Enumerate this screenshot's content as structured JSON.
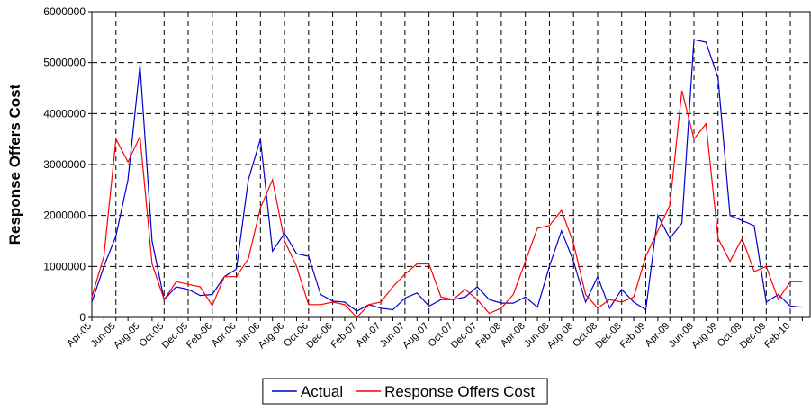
{
  "chart_data": {
    "type": "line",
    "y_label": "Response Offers Cost",
    "categories": [
      "Apr-05",
      null,
      "Jun-05",
      null,
      "Aug-05",
      null,
      "Oct-05",
      null,
      "Dec-05",
      null,
      "Feb-06",
      null,
      "Apr-06",
      null,
      "Jun-06",
      null,
      "Aug-06",
      null,
      "Oct-06",
      null,
      "Dec-06",
      null,
      "Feb-07",
      null,
      "Apr-07",
      null,
      "Jun-07",
      null,
      "Aug-07",
      null,
      "Oct-07",
      null,
      "Dec-07",
      null,
      "Feb-08",
      null,
      "Apr-08",
      null,
      "Jun-08",
      null,
      "Aug-08",
      null,
      "Oct-08",
      null,
      "Dec-08",
      null,
      "Feb-09",
      null,
      "Apr-09",
      null,
      "Jun-09",
      null,
      "Aug-09",
      null,
      "Oct-09",
      null,
      "Dec-09",
      null,
      "Feb-10",
      null
    ],
    "series": [
      {
        "name": "Actual",
        "color": "#0000cc",
        "values": [
          300000,
          1000000,
          1600000,
          2700000,
          4950000,
          1500000,
          350000,
          600000,
          550000,
          430000,
          450000,
          800000,
          950000,
          2700000,
          3500000,
          1300000,
          1650000,
          1250000,
          1200000,
          450000,
          320000,
          300000,
          120000,
          250000,
          180000,
          150000,
          380000,
          480000,
          220000,
          350000,
          350000,
          400000,
          600000,
          350000,
          280000,
          280000,
          400000,
          200000,
          1000000,
          1700000,
          1100000,
          300000,
          800000,
          180000,
          550000,
          300000,
          150000,
          2000000,
          1550000,
          1850000,
          5450000,
          5400000,
          4700000,
          2000000,
          1900000,
          1800000,
          300000,
          450000,
          220000,
          200000
        ]
      },
      {
        "name": "Response Offers Cost",
        "color": "#ff0000",
        "values": [
          400000,
          1200000,
          3500000,
          3050000,
          3550000,
          1050000,
          350000,
          700000,
          650000,
          600000,
          230000,
          800000,
          800000,
          1150000,
          2150000,
          2700000,
          1500000,
          1000000,
          250000,
          250000,
          300000,
          250000,
          0,
          250000,
          300000,
          600000,
          850000,
          1050000,
          1050000,
          400000,
          350000,
          550000,
          350000,
          80000,
          180000,
          450000,
          1100000,
          1750000,
          1800000,
          2100000,
          1450000,
          450000,
          180000,
          350000,
          300000,
          400000,
          1200000,
          1700000,
          2200000,
          4450000,
          3500000,
          3800000,
          1550000,
          1100000,
          1550000,
          900000,
          1000000,
          350000,
          700000,
          700000
        ]
      }
    ],
    "ylim": [
      0,
      6000000
    ],
    "yticks": [
      0,
      1000000,
      2000000,
      3000000,
      4000000,
      5000000,
      6000000
    ],
    "grid": true
  }
}
